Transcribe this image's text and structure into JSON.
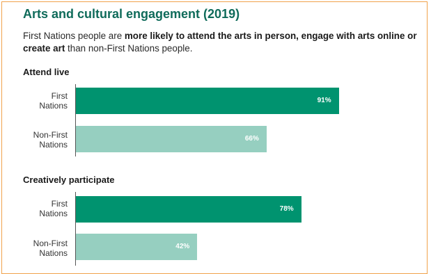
{
  "title": "Arts and cultural engagement (2019)",
  "subtitle": {
    "p1": "First Nations people are ",
    "b1": "more likely to attend the arts in person, engage with arts online or create art",
    "p2": " than non-First Nations people."
  },
  "colors": {
    "first_nations": "#00936f",
    "non_first_nations": "#96cfc0",
    "title": "#0f6b5a",
    "border": "#f0a24a"
  },
  "chart_data": [
    {
      "type": "bar",
      "orientation": "horizontal",
      "title": "Attend live",
      "categories": [
        "First Nations",
        "Non-First Nations"
      ],
      "category_lines": [
        [
          "First",
          "Nations"
        ],
        [
          "Non-First",
          "Nations"
        ]
      ],
      "values": [
        91,
        66
      ],
      "value_labels": [
        "91%",
        "66%"
      ],
      "xlim": [
        0,
        100
      ],
      "grid": false
    },
    {
      "type": "bar",
      "orientation": "horizontal",
      "title": "Creatively participate",
      "categories": [
        "First Nations",
        "Non-First Nations"
      ],
      "category_lines": [
        [
          "First",
          "Nations"
        ],
        [
          "Non-First",
          "Nations"
        ]
      ],
      "values": [
        78,
        42
      ],
      "value_labels": [
        "78%",
        "42%"
      ],
      "xlim": [
        0,
        100
      ],
      "grid": false
    }
  ]
}
